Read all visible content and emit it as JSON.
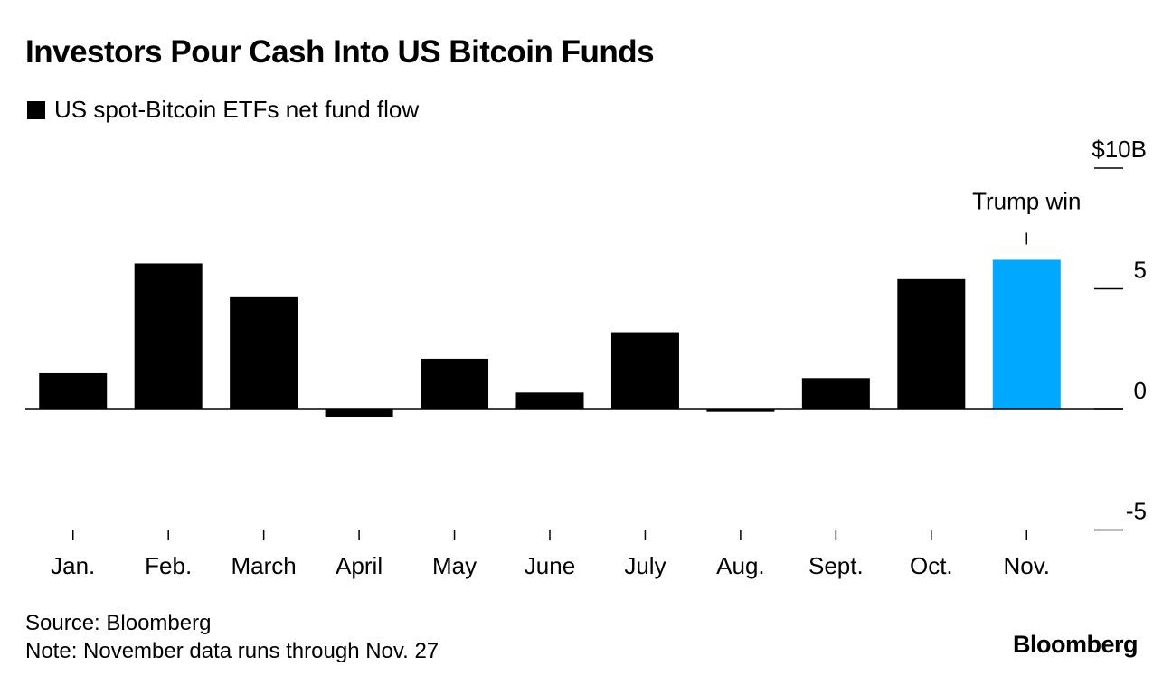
{
  "header": {
    "title": "Investors Pour Cash Into US Bitcoin Funds"
  },
  "legend": {
    "label": "US spot-Bitcoin ETFs net fund flow"
  },
  "footer": {
    "source": "Source: Bloomberg",
    "note": "Note: November data runs through Nov. 27",
    "logo": "Bloomberg"
  },
  "chart_data": {
    "type": "bar",
    "title": "Investors Pour Cash Into US Bitcoin Funds",
    "categories": [
      "Jan.",
      "Feb.",
      "March",
      "April",
      "May",
      "June",
      "July",
      "Aug.",
      "Sept.",
      "Oct.",
      "Nov."
    ],
    "series": [
      {
        "name": "US spot-Bitcoin ETFs net fund flow",
        "values": [
          1.5,
          6.05,
          4.65,
          -0.3,
          2.1,
          0.7,
          3.2,
          -0.1,
          1.3,
          5.4,
          6.2
        ]
      }
    ],
    "highlight_index": 10,
    "highlight_color": "#00a8ff",
    "bar_color": "#000000",
    "yticks": [
      10,
      5,
      0,
      -5
    ],
    "ytick_labels": [
      "$10B",
      "5",
      "0",
      "-5"
    ],
    "ylim": [
      -5,
      10
    ],
    "y_axis_side": "right",
    "annotation": {
      "text": "Trump win",
      "category": "Nov."
    },
    "xlabel": "",
    "ylabel": ""
  }
}
